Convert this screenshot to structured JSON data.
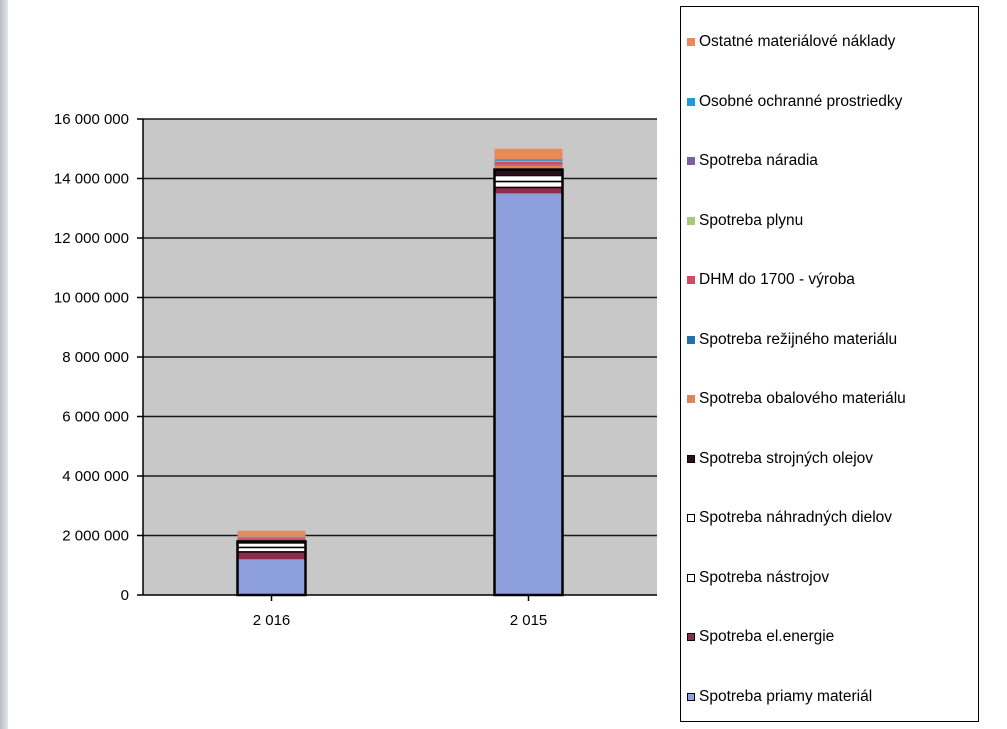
{
  "chart_data": {
    "type": "bar",
    "stacked": true,
    "categories": [
      "2 016",
      "2 015"
    ],
    "y_ticks": [
      "0",
      "2 000 000",
      "4 000 000",
      "6 000 000",
      "8 000 000",
      "10 000 000",
      "12 000 000",
      "14 000 000",
      "16 000 000"
    ],
    "ylim": [
      0,
      16000000
    ],
    "grid": true,
    "legend_position": "right",
    "series": [
      {
        "name": "Spotreba priamy materiál",
        "color": "#8d9fdc",
        "values": [
          1200000,
          13500000
        ]
      },
      {
        "name": "Spotreba el.energie",
        "color": "#8b2c4a",
        "values": [
          250000,
          200000
        ]
      },
      {
        "name": "Spotreba nástrojov",
        "color": "#ffffff",
        "values": [
          150000,
          200000
        ]
      },
      {
        "name": "Spotreba náhradných dielov",
        "color": "#ffffff",
        "values": [
          150000,
          200000
        ]
      },
      {
        "name": "Spotreba strojných olejov",
        "color": "#2a0f1c",
        "values": [
          50000,
          200000
        ]
      },
      {
        "name": "Spotreba obalového materiálu",
        "color": "#e08458",
        "values": [
          50000,
          150000
        ]
      },
      {
        "name": "Spotreba režijného materiálu",
        "color": "#1e72a8",
        "values": [
          10000,
          10000
        ]
      },
      {
        "name": "DHM do 1700 - výroba",
        "color": "#d14b62",
        "values": [
          60000,
          100000
        ]
      },
      {
        "name": "Spotreba plynu",
        "color": "#a6c87a",
        "values": [
          10000,
          20000
        ]
      },
      {
        "name": "Spotreba náradia",
        "color": "#7f5fa0",
        "values": [
          10000,
          20000
        ]
      },
      {
        "name": "Osobné ochranné prostriedky",
        "color": "#1b9ed6",
        "values": [
          20000,
          50000
        ]
      },
      {
        "name": "Ostatné materiálové náklady",
        "color": "#e88a5c",
        "values": [
          200000,
          350000
        ]
      }
    ],
    "legend_order": [
      "Ostatné materiálové náklady",
      "Osobné ochranné prostriedky",
      "Spotreba náradia",
      "Spotreba plynu",
      "DHM do 1700 - výroba",
      "Spotreba režijného materiálu",
      "Spotreba obalového materiálu",
      "Spotreba strojných olejov",
      "Spotreba náhradných dielov",
      "Spotreba nástrojov",
      "Spotreba el.energie",
      "Spotreba priamy materiál"
    ]
  }
}
